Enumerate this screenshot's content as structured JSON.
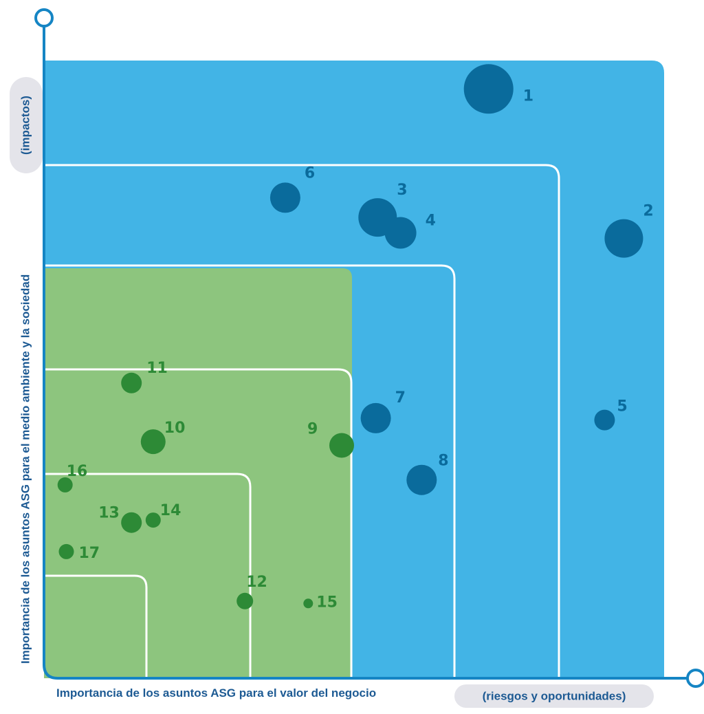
{
  "chart_data": {
    "type": "scatter",
    "title": "",
    "xlabel": "Importancia de los asuntos ASG para el valor del negocio",
    "xlabel_note": "(riesgos y oportunidades)",
    "ylabel": "Importancia de los asuntos ASG para el medio ambiente y la sociedad",
    "ylabel_note": "(impactos)",
    "xlim": [
      0,
      100
    ],
    "ylim": [
      0,
      100
    ],
    "grid": false,
    "legend": "none",
    "colors": {
      "blue_zone": "#42b4e6",
      "green_zone": "#8dc57e",
      "blue_point": "#0a6b9c",
      "green_point": "#2d8a36",
      "axis": "#1585c4",
      "pill": "#e4e4ea",
      "axis_text": "#1d5a93"
    },
    "points": [
      {
        "label": "1",
        "x": 71.7,
        "y": 95.4,
        "size": 36,
        "group": "blue"
      },
      {
        "label": "2",
        "x": 93.5,
        "y": 71.2,
        "size": 28,
        "group": "blue"
      },
      {
        "label": "3",
        "x": 53.8,
        "y": 74.6,
        "size": 28,
        "group": "blue"
      },
      {
        "label": "4",
        "x": 57.5,
        "y": 72.1,
        "size": 23,
        "group": "blue"
      },
      {
        "label": "5",
        "x": 90.4,
        "y": 41.8,
        "size": 15,
        "group": "blue"
      },
      {
        "label": "6",
        "x": 38.9,
        "y": 77.8,
        "size": 22,
        "group": "blue"
      },
      {
        "label": "7",
        "x": 53.5,
        "y": 42.1,
        "size": 22,
        "group": "blue"
      },
      {
        "label": "8",
        "x": 60.9,
        "y": 32.1,
        "size": 22,
        "group": "blue"
      },
      {
        "label": "9",
        "x": 48.0,
        "y": 37.7,
        "size": 18,
        "group": "green"
      },
      {
        "label": "10",
        "x": 17.6,
        "y": 38.3,
        "size": 18,
        "group": "green"
      },
      {
        "label": "11",
        "x": 14.1,
        "y": 47.8,
        "size": 15,
        "group": "green"
      },
      {
        "label": "12",
        "x": 32.4,
        "y": 12.5,
        "size": 12,
        "group": "green"
      },
      {
        "label": "13",
        "x": 14.1,
        "y": 25.2,
        "size": 15,
        "group": "green"
      },
      {
        "label": "14",
        "x": 17.6,
        "y": 25.6,
        "size": 11,
        "group": "green"
      },
      {
        "label": "15",
        "x": 42.6,
        "y": 12.1,
        "size": 7,
        "group": "green"
      },
      {
        "label": "16",
        "x": 3.4,
        "y": 31.3,
        "size": 11,
        "group": "green"
      },
      {
        "label": "17",
        "x": 3.6,
        "y": 20.5,
        "size": 11,
        "group": "green"
      }
    ]
  }
}
